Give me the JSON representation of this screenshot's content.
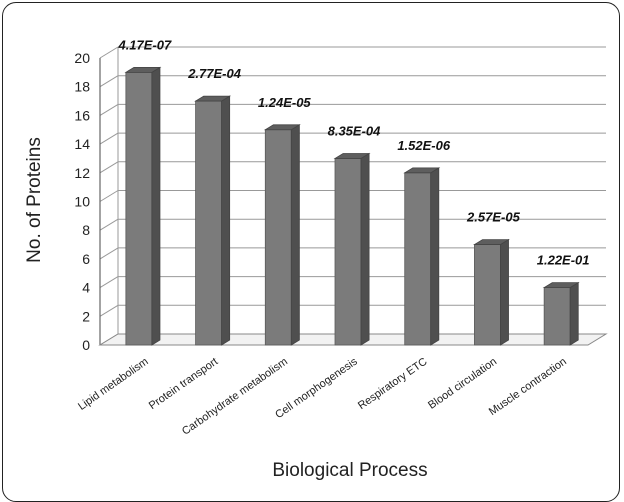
{
  "chart_data": {
    "type": "bar",
    "xlabel": "Biological Process",
    "ylabel": "No. of  Proteins",
    "ylim": [
      0,
      20
    ],
    "yticks": [
      0,
      2,
      4,
      6,
      8,
      10,
      12,
      14,
      16,
      18,
      20
    ],
    "grid": true,
    "style": "3d-column",
    "bar_color": "#7a7a7a",
    "categories": [
      "Lipid metabolism",
      "Protein transport",
      "Carbohydrate metabolism",
      "Cell morphogenesis",
      "Respiratory ETC",
      "Blood circulation",
      "Muscle contraction"
    ],
    "values": [
      19,
      17,
      15,
      13,
      12,
      7,
      4
    ],
    "bar_labels": [
      "4.17E-07",
      "2.77E-04",
      "1.24E-05",
      "8.35E-04",
      "1.52E-06",
      "2.57E-05",
      "1.22E-01"
    ]
  }
}
